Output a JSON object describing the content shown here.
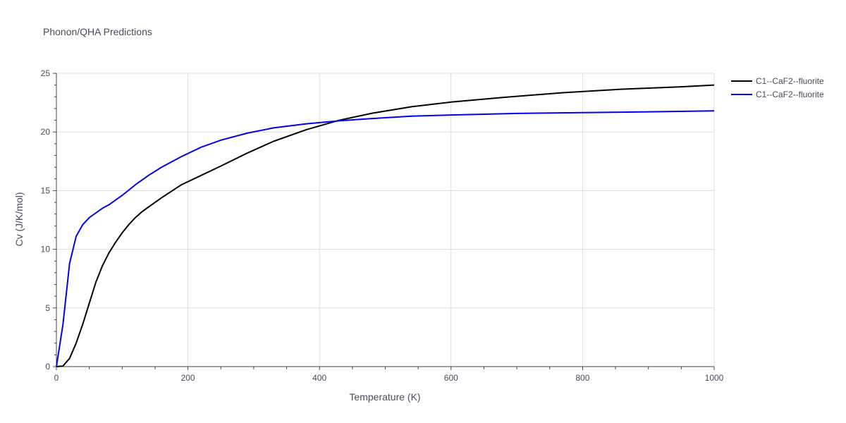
{
  "chart_data": {
    "type": "line",
    "title": "Phonon/QHA Predictions",
    "xlabel": "Temperature (K)",
    "ylabel": "Cv (J/K/mol)",
    "xlim": [
      0,
      1000
    ],
    "ylim": [
      0,
      25
    ],
    "xticks": [
      0,
      200,
      400,
      600,
      800,
      1000
    ],
    "yticks": [
      0,
      5,
      10,
      15,
      20,
      25
    ],
    "grid": true,
    "legend_position": "top-right",
    "series": [
      {
        "name": "C1--CaF2--fluorite",
        "color": "#000000",
        "x": [
          0,
          10,
          20,
          30,
          40,
          50,
          60,
          70,
          80,
          90,
          100,
          110,
          120,
          130,
          140,
          160,
          190,
          220,
          250,
          290,
          330,
          380,
          430,
          480,
          540,
          600,
          680,
          770,
          860,
          950,
          1000
        ],
        "y": [
          0,
          0.05,
          0.7,
          2.0,
          3.6,
          5.4,
          7.2,
          8.6,
          9.7,
          10.6,
          11.4,
          12.1,
          12.7,
          13.2,
          13.6,
          14.4,
          15.5,
          16.3,
          17.1,
          18.2,
          19.2,
          20.2,
          21.0,
          21.6,
          22.15,
          22.55,
          22.95,
          23.35,
          23.65,
          23.85,
          24.0
        ]
      },
      {
        "name": "C1--CaF2--fluorite",
        "color": "#0000ee",
        "x": [
          0,
          10,
          20,
          30,
          40,
          50,
          60,
          70,
          80,
          90,
          100,
          120,
          140,
          160,
          190,
          220,
          250,
          290,
          330,
          380,
          430,
          480,
          540,
          600,
          700,
          800,
          900,
          1000
        ],
        "y": [
          0,
          3.6,
          8.8,
          11.1,
          12.1,
          12.7,
          13.1,
          13.5,
          13.8,
          14.2,
          14.6,
          15.5,
          16.3,
          17.0,
          17.9,
          18.7,
          19.3,
          19.9,
          20.35,
          20.7,
          20.95,
          21.15,
          21.35,
          21.45,
          21.58,
          21.65,
          21.72,
          21.8
        ]
      }
    ]
  }
}
